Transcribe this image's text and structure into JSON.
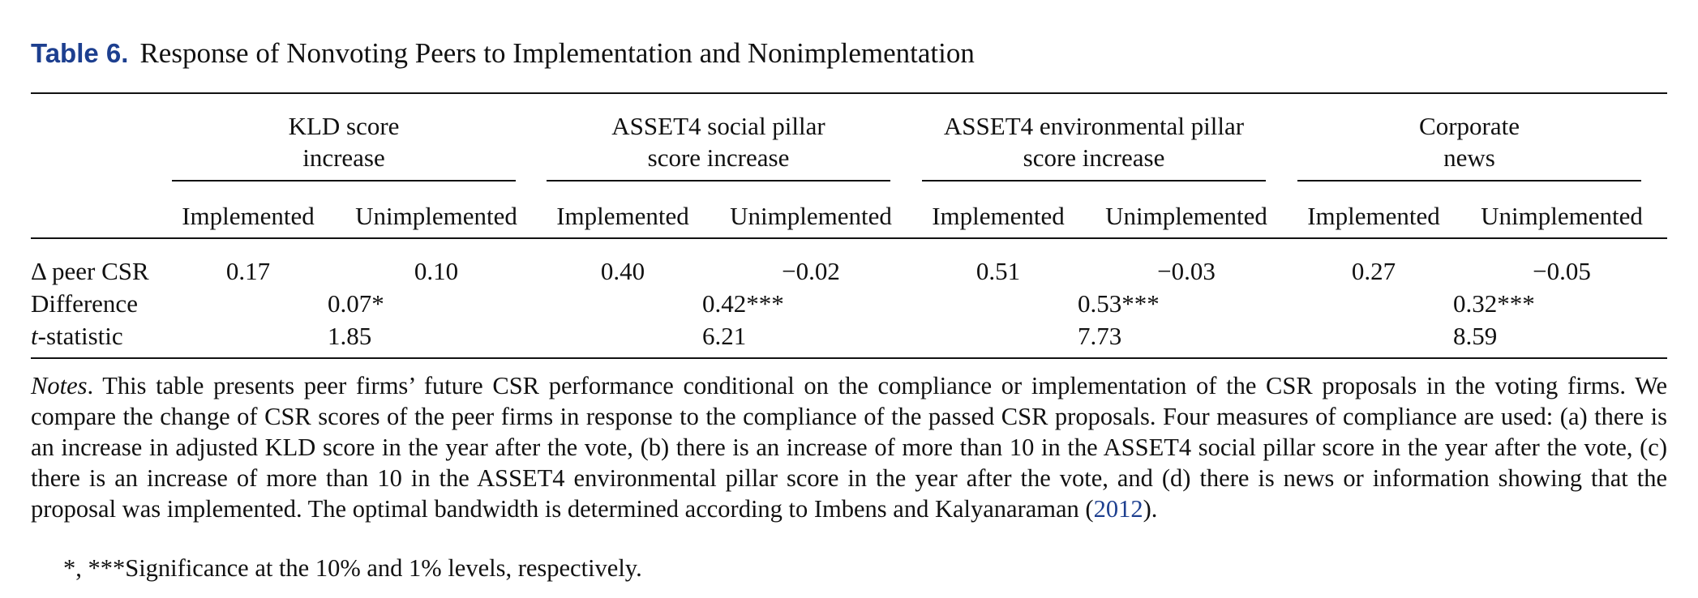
{
  "caption": {
    "label": "Table 6.",
    "title": "Response of Nonvoting Peers to Implementation and Nonimplementation"
  },
  "groups": [
    {
      "line1": "KLD score",
      "line2": "increase"
    },
    {
      "line1": "ASSET4 social pillar",
      "line2": "score increase"
    },
    {
      "line1": "ASSET4 environmental pillar",
      "line2": "score increase"
    },
    {
      "line1": "Corporate",
      "line2": "news"
    }
  ],
  "subheaders": [
    "Implemented",
    "Unimplemented",
    "Implemented",
    "Unimplemented",
    "Implemented",
    "Unimplemented",
    "Implemented",
    "Unimplemented"
  ],
  "rows": {
    "peer_csr": {
      "label_symbol": "Δ",
      "label_text": " peer CSR",
      "values": [
        "0.17",
        "0.10",
        "0.40",
        "−0.02",
        "0.51",
        "−0.03",
        "0.27",
        "−0.05"
      ]
    },
    "difference": {
      "label": "Difference",
      "values": [
        "0.07*",
        "0.42***",
        "0.53***",
        "0.32***"
      ]
    },
    "tstat": {
      "label_italic": "t",
      "label_text": "-statistic",
      "values": [
        "1.85",
        "6.21",
        "7.73",
        "8.59"
      ]
    }
  },
  "notes": {
    "lead": "Notes",
    "text": ". This table presents peer firms’ future CSR performance conditional on the compliance or implementation of the CSR proposals in the voting firms. We compare the change of CSR scores of the peer firms in response to the compliance of the passed CSR proposals. Four measures of compliance are used: (a) there is an increase in adjusted KLD score in the year after the vote, (b) there is an increase of more than 10 in the ASSET4 social pillar score in the year after the vote, (c) there is an increase of more than 10 in the ASSET4 environmental pillar score in the year after the vote, and (d) there is news or information showing that the proposal was implemented. The optimal bandwidth is determined according to Imbens and Kalyanaraman (",
    "ref": "2012",
    "tail": ").",
    "footnote": "*, ***Significance at the 10% and 1% levels, respectively."
  },
  "colors": {
    "caption_label": "#1d3f8f",
    "link": "#1d3f8f",
    "text": "#111111"
  }
}
